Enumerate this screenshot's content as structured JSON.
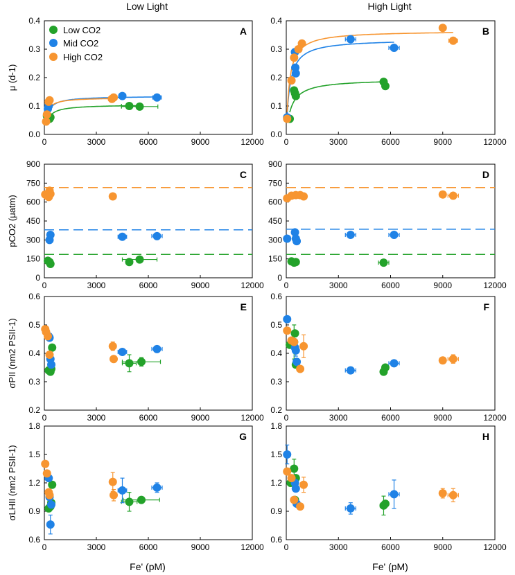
{
  "figure": {
    "column_titles": [
      "Low Light",
      "High Light"
    ],
    "x_axis_label": "Fe' (pM)",
    "row_labels": [
      "μ (d-1)",
      "pCO2 (μatm)",
      "σPII (nm2 PSII-1)",
      "σLHII (nm2 PSII-1)"
    ],
    "legend": [
      {
        "name": "Low CO2",
        "color": "#23a22a"
      },
      {
        "name": "Mid CO2",
        "color": "#1f82e6"
      },
      {
        "name": "High CO2",
        "color": "#f79530"
      }
    ]
  },
  "chart_data": [
    {
      "panel": "A",
      "type": "scatter",
      "title": "Low Light",
      "ylabel": "μ (d-1)",
      "xlabel": "",
      "xlim": [
        0,
        12000
      ],
      "ylim": [
        0,
        0.4
      ],
      "xticks": [
        0,
        3000,
        6000,
        9000,
        12000
      ],
      "yticks": [
        0,
        0.1,
        0.2,
        0.3,
        0.4
      ],
      "series": [
        {
          "name": "Low CO2",
          "color": "#23a22a",
          "points": [
            {
              "x": 150,
              "y": 0.065
            },
            {
              "x": 300,
              "y": 0.055
            },
            {
              "x": 350,
              "y": 0.06
            },
            {
              "x": 4900,
              "y": 0.1,
              "xerr": 450
            },
            {
              "x": 5500,
              "y": 0.098,
              "xerr": 1050
            }
          ],
          "fit": {
            "vmax": 0.105,
            "k": 200
          }
        },
        {
          "name": "Mid CO2",
          "color": "#1f82e6",
          "points": [
            {
              "x": 200,
              "y": 0.09
            },
            {
              "x": 250,
              "y": 0.1
            },
            {
              "x": 4500,
              "y": 0.135,
              "xerr": 200
            },
            {
              "x": 6500,
              "y": 0.13,
              "xerr": 250
            }
          ],
          "fit": {
            "vmax": 0.135,
            "k": 160
          }
        },
        {
          "name": "High CO2",
          "color": "#f79530",
          "points": [
            {
              "x": 100,
              "y": 0.045
            },
            {
              "x": 150,
              "y": 0.07
            },
            {
              "x": 250,
              "y": 0.115
            },
            {
              "x": 300,
              "y": 0.12
            },
            {
              "x": 3900,
              "y": 0.125,
              "xerr": 200
            },
            {
              "x": 4000,
              "y": 0.13,
              "xerr": 200
            }
          ],
          "fit": {
            "vmax": 0.13,
            "k": 120
          }
        }
      ]
    },
    {
      "panel": "B",
      "type": "scatter",
      "title": "High Light",
      "ylabel": "",
      "xlabel": "",
      "xlim": [
        0,
        12000
      ],
      "ylim": [
        0,
        0.4
      ],
      "xticks": [
        0,
        3000,
        6000,
        9000,
        12000
      ],
      "yticks": [
        0,
        0.1,
        0.2,
        0.3,
        0.4
      ],
      "series": [
        {
          "name": "Low CO2",
          "color": "#23a22a",
          "points": [
            {
              "x": 200,
              "y": 0.055
            },
            {
              "x": 450,
              "y": 0.155
            },
            {
              "x": 500,
              "y": 0.145
            },
            {
              "x": 550,
              "y": 0.135
            },
            {
              "x": 5600,
              "y": 0.185
            },
            {
              "x": 5700,
              "y": 0.17
            }
          ],
          "fit": {
            "vmax": 0.195,
            "k": 300
          }
        },
        {
          "name": "Mid CO2",
          "color": "#1f82e6",
          "points": [
            {
              "x": 50,
              "y": 0.06
            },
            {
              "x": 500,
              "y": 0.29
            },
            {
              "x": 520,
              "y": 0.235
            },
            {
              "x": 550,
              "y": 0.215
            },
            {
              "x": 3700,
              "y": 0.335,
              "xerr": 300
            },
            {
              "x": 6200,
              "y": 0.305,
              "xerr": 300
            }
          ],
          "fit": {
            "vmax": 0.335,
            "k": 200
          }
        },
        {
          "name": "High CO2",
          "color": "#f79530",
          "points": [
            {
              "x": 50,
              "y": 0.055
            },
            {
              "x": 300,
              "y": 0.19
            },
            {
              "x": 450,
              "y": 0.27
            },
            {
              "x": 700,
              "y": 0.3
            },
            {
              "x": 900,
              "y": 0.32
            },
            {
              "x": 9000,
              "y": 0.375
            },
            {
              "x": 9600,
              "y": 0.33,
              "xerr": 250
            }
          ],
          "fit": {
            "vmax": 0.365,
            "k": 180
          }
        }
      ]
    },
    {
      "panel": "C",
      "type": "scatter",
      "ylabel": "pCO2 (μatm)",
      "xlabel": "",
      "xlim": [
        0,
        12000
      ],
      "ylim": [
        0,
        900
      ],
      "xticks": [
        0,
        3000,
        6000,
        9000,
        12000
      ],
      "yticks": [
        0,
        150,
        300,
        450,
        600,
        750,
        900
      ],
      "reference_lines": [
        {
          "y": 715,
          "color": "#f79530"
        },
        {
          "y": 380,
          "color": "#1f82e6"
        },
        {
          "y": 185,
          "color": "#23a22a"
        }
      ],
      "series": [
        {
          "name": "Low CO2",
          "color": "#23a22a",
          "points": [
            {
              "x": 200,
              "y": 135
            },
            {
              "x": 300,
              "y": 125
            },
            {
              "x": 350,
              "y": 110
            },
            {
              "x": 4900,
              "y": 125
            },
            {
              "x": 5500,
              "y": 145,
              "xerr": 1000
            }
          ]
        },
        {
          "name": "Mid CO2",
          "color": "#1f82e6",
          "points": [
            {
              "x": 300,
              "y": 300
            },
            {
              "x": 350,
              "y": 340
            },
            {
              "x": 4500,
              "y": 325,
              "xerr": 250
            },
            {
              "x": 6500,
              "y": 330,
              "xerr": 300
            }
          ]
        },
        {
          "name": "High CO2",
          "color": "#f79530",
          "points": [
            {
              "x": 50,
              "y": 660
            },
            {
              "x": 150,
              "y": 650
            },
            {
              "x": 250,
              "y": 640
            },
            {
              "x": 300,
              "y": 690
            },
            {
              "x": 350,
              "y": 665
            },
            {
              "x": 3950,
              "y": 645,
              "xerr": 150
            }
          ]
        }
      ]
    },
    {
      "panel": "D",
      "type": "scatter",
      "ylabel": "",
      "xlabel": "",
      "xlim": [
        0,
        12000
      ],
      "ylim": [
        0,
        900
      ],
      "xticks": [
        0,
        3000,
        6000,
        9000,
        12000
      ],
      "yticks": [
        0,
        150,
        300,
        450,
        600,
        750,
        900
      ],
      "reference_lines": [
        {
          "y": 715,
          "color": "#f79530"
        },
        {
          "y": 385,
          "color": "#1f82e6"
        },
        {
          "y": 185,
          "color": "#23a22a"
        }
      ],
      "series": [
        {
          "name": "Low CO2",
          "color": "#23a22a",
          "points": [
            {
              "x": 300,
              "y": 130
            },
            {
              "x": 450,
              "y": 120
            },
            {
              "x": 550,
              "y": 125
            },
            {
              "x": 5600,
              "y": 120,
              "xerr": 300
            }
          ]
        },
        {
          "name": "Mid CO2",
          "color": "#1f82e6",
          "points": [
            {
              "x": 50,
              "y": 310
            },
            {
              "x": 500,
              "y": 360
            },
            {
              "x": 550,
              "y": 310
            },
            {
              "x": 600,
              "y": 290
            },
            {
              "x": 3700,
              "y": 340,
              "xerr": 300
            },
            {
              "x": 6200,
              "y": 340,
              "xerr": 300
            }
          ]
        },
        {
          "name": "High CO2",
          "color": "#f79530",
          "points": [
            {
              "x": 50,
              "y": 630
            },
            {
              "x": 300,
              "y": 650
            },
            {
              "x": 550,
              "y": 655
            },
            {
              "x": 800,
              "y": 655
            },
            {
              "x": 1000,
              "y": 645
            },
            {
              "x": 9000,
              "y": 660
            },
            {
              "x": 9600,
              "y": 650,
              "xerr": 300
            }
          ]
        }
      ]
    },
    {
      "panel": "E",
      "type": "scatter",
      "ylabel": "σPII (nm2 PSII-1)",
      "xlabel": "",
      "xlim": [
        0,
        12000
      ],
      "ylim": [
        0.2,
        0.6
      ],
      "xticks": [
        0,
        3000,
        6000,
        9000,
        12000
      ],
      "yticks": [
        0.2,
        0.3,
        0.4,
        0.5,
        0.6
      ],
      "series": [
        {
          "name": "Low CO2",
          "color": "#23a22a",
          "points": [
            {
              "x": 250,
              "y": 0.34
            },
            {
              "x": 350,
              "y": 0.335
            },
            {
              "x": 400,
              "y": 0.345
            },
            {
              "x": 450,
              "y": 0.42
            },
            {
              "x": 4900,
              "y": 0.365,
              "xerr": 400,
              "yerr": 0.03
            },
            {
              "x": 5600,
              "y": 0.37,
              "xerr": 1100,
              "yerr": 0.015
            }
          ]
        },
        {
          "name": "Mid CO2",
          "color": "#1f82e6",
          "points": [
            {
              "x": 250,
              "y": 0.46
            },
            {
              "x": 300,
              "y": 0.455
            },
            {
              "x": 350,
              "y": 0.38
            },
            {
              "x": 400,
              "y": 0.36
            },
            {
              "x": 4500,
              "y": 0.405,
              "xerr": 250
            },
            {
              "x": 6500,
              "y": 0.415,
              "xerr": 300
            }
          ]
        },
        {
          "name": "High CO2",
          "color": "#f79530",
          "points": [
            {
              "x": 50,
              "y": 0.485
            },
            {
              "x": 100,
              "y": 0.475
            },
            {
              "x": 200,
              "y": 0.46
            },
            {
              "x": 300,
              "y": 0.395
            },
            {
              "x": 3950,
              "y": 0.425,
              "xerr": 150,
              "yerr": 0.015
            },
            {
              "x": 4000,
              "y": 0.38
            }
          ]
        }
      ]
    },
    {
      "panel": "F",
      "type": "scatter",
      "ylabel": "",
      "xlabel": "",
      "xlim": [
        0,
        12000
      ],
      "ylim": [
        0.2,
        0.6
      ],
      "xticks": [
        0,
        3000,
        6000,
        9000,
        12000
      ],
      "yticks": [
        0.2,
        0.3,
        0.4,
        0.5,
        0.6
      ],
      "series": [
        {
          "name": "Low CO2",
          "color": "#23a22a",
          "points": [
            {
              "x": 200,
              "y": 0.43
            },
            {
              "x": 450,
              "y": 0.44,
              "yerr": 0.06
            },
            {
              "x": 500,
              "y": 0.47
            },
            {
              "x": 550,
              "y": 0.36
            },
            {
              "x": 5600,
              "y": 0.335
            },
            {
              "x": 5700,
              "y": 0.35
            }
          ]
        },
        {
          "name": "Mid CO2",
          "color": "#1f82e6",
          "points": [
            {
              "x": 50,
              "y": 0.52
            },
            {
              "x": 500,
              "y": 0.42
            },
            {
              "x": 550,
              "y": 0.41,
              "yerr": 0.02
            },
            {
              "x": 600,
              "y": 0.37
            },
            {
              "x": 3700,
              "y": 0.34,
              "xerr": 300
            },
            {
              "x": 6200,
              "y": 0.365,
              "xerr": 300
            }
          ]
        },
        {
          "name": "High CO2",
          "color": "#f79530",
          "points": [
            {
              "x": 50,
              "y": 0.48
            },
            {
              "x": 300,
              "y": 0.445
            },
            {
              "x": 450,
              "y": 0.44
            },
            {
              "x": 800,
              "y": 0.345
            },
            {
              "x": 1000,
              "y": 0.425,
              "yerr": 0.04
            },
            {
              "x": 9000,
              "y": 0.375
            },
            {
              "x": 9600,
              "y": 0.38,
              "xerr": 300,
              "yerr": 0.015
            }
          ]
        }
      ]
    },
    {
      "panel": "G",
      "type": "scatter",
      "ylabel": "σLHII (nm2 PSII-1)",
      "xlabel": "Fe' (pM)",
      "xlim": [
        0,
        12000
      ],
      "ylim": [
        0.6,
        1.8
      ],
      "xticks": [
        0,
        3000,
        6000,
        9000,
        12000
      ],
      "yticks": [
        0.6,
        0.9,
        1.2,
        1.5,
        1.8
      ],
      "series": [
        {
          "name": "Low CO2",
          "color": "#23a22a",
          "points": [
            {
              "x": 250,
              "y": 0.93
            },
            {
              "x": 350,
              "y": 0.95
            },
            {
              "x": 400,
              "y": 0.99
            },
            {
              "x": 450,
              "y": 1.18
            },
            {
              "x": 4900,
              "y": 1.0,
              "xerr": 450,
              "yerr": 0.1
            },
            {
              "x": 5600,
              "y": 1.02,
              "xerr": 1050
            }
          ]
        },
        {
          "name": "Mid CO2",
          "color": "#1f82e6",
          "points": [
            {
              "x": 250,
              "y": 1.25
            },
            {
              "x": 300,
              "y": 1.05
            },
            {
              "x": 350,
              "y": 0.76,
              "yerr": 0.1
            },
            {
              "x": 400,
              "y": 0.97
            },
            {
              "x": 4500,
              "y": 1.12,
              "xerr": 250,
              "yerr": 0.13
            },
            {
              "x": 6500,
              "y": 1.15,
              "xerr": 300,
              "yerr": 0.05
            }
          ]
        },
        {
          "name": "High CO2",
          "color": "#f79530",
          "points": [
            {
              "x": 50,
              "y": 1.4
            },
            {
              "x": 150,
              "y": 1.3
            },
            {
              "x": 250,
              "y": 1.1
            },
            {
              "x": 300,
              "y": 1.07
            },
            {
              "x": 3950,
              "y": 1.21,
              "xerr": 150,
              "yerr": 0.1
            },
            {
              "x": 4000,
              "y": 1.07,
              "yerr": 0.06
            }
          ]
        }
      ]
    },
    {
      "panel": "H",
      "type": "scatter",
      "ylabel": "",
      "xlabel": "Fe' (pM)",
      "xlim": [
        0,
        12000
      ],
      "ylim": [
        0.6,
        1.8
      ],
      "xticks": [
        0,
        3000,
        6000,
        9000,
        12000
      ],
      "yticks": [
        0.6,
        0.9,
        1.2,
        1.5,
        1.8
      ],
      "series": [
        {
          "name": "Low CO2",
          "color": "#23a22a",
          "points": [
            {
              "x": 250,
              "y": 1.2
            },
            {
              "x": 450,
              "y": 1.35,
              "yerr": 0.1
            },
            {
              "x": 500,
              "y": 1.02
            },
            {
              "x": 550,
              "y": 1.25
            },
            {
              "x": 5600,
              "y": 0.96,
              "xerr": 200,
              "yerr": 0.1
            },
            {
              "x": 5700,
              "y": 0.98
            }
          ]
        },
        {
          "name": "Mid CO2",
          "color": "#1f82e6",
          "points": [
            {
              "x": 50,
              "y": 1.5,
              "yerr": 0.1
            },
            {
              "x": 500,
              "y": 1.2
            },
            {
              "x": 550,
              "y": 1.14
            },
            {
              "x": 600,
              "y": 0.98
            },
            {
              "x": 3700,
              "y": 0.93,
              "xerr": 300,
              "yerr": 0.06
            },
            {
              "x": 6200,
              "y": 1.08,
              "xerr": 300,
              "yerr": 0.15
            }
          ]
        },
        {
          "name": "High CO2",
          "color": "#f79530",
          "points": [
            {
              "x": 50,
              "y": 1.32
            },
            {
              "x": 300,
              "y": 1.25
            },
            {
              "x": 450,
              "y": 1.02
            },
            {
              "x": 800,
              "y": 0.95
            },
            {
              "x": 1000,
              "y": 1.18,
              "yerr": 0.08
            },
            {
              "x": 9000,
              "y": 1.09,
              "yerr": 0.05
            },
            {
              "x": 9600,
              "y": 1.07,
              "xerr": 300,
              "yerr": 0.07
            }
          ]
        }
      ]
    }
  ]
}
